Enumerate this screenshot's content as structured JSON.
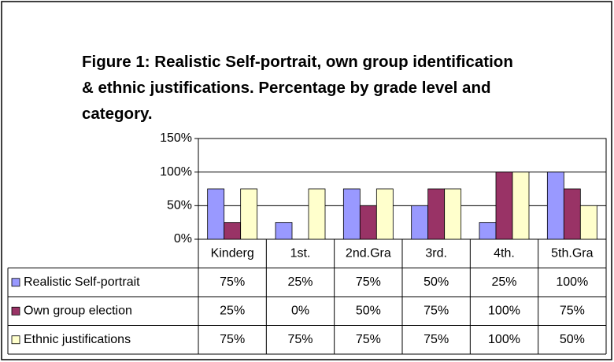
{
  "chart_data": {
    "type": "bar",
    "title": "Figure 1: Realistic Self-portrait, own group identification & ethnic justifications. Percentage by grade level and category.",
    "categories": [
      "Kinderg",
      "1st.",
      "2nd.Gra",
      "3rd.",
      "4th.",
      "5th.Gra"
    ],
    "series": [
      {
        "name": "Realistic Self-portrait",
        "color": "#9999ff",
        "values": [
          75,
          25,
          75,
          50,
          25,
          100
        ],
        "value_labels": [
          "75%",
          "25%",
          "75%",
          "50%",
          "25%",
          "100%"
        ]
      },
      {
        "name": "Own group election",
        "color": "#993366",
        "values": [
          25,
          0,
          50,
          75,
          100,
          75
        ],
        "value_labels": [
          "25%",
          "0%",
          "50%",
          "75%",
          "100%",
          "75%"
        ]
      },
      {
        "name": "Ethnic justifications",
        "color": "#ffffcc",
        "values": [
          75,
          75,
          75,
          75,
          100,
          50
        ],
        "value_labels": [
          "75%",
          "75%",
          "75%",
          "75%",
          "100%",
          "50%"
        ]
      }
    ],
    "ylim": [
      0,
      150
    ],
    "yticks": [
      {
        "value": 0,
        "label": "0%"
      },
      {
        "value": 50,
        "label": "50%"
      },
      {
        "value": 100,
        "label": "100%"
      },
      {
        "value": 150,
        "label": "150%"
      }
    ],
    "grid": true
  }
}
